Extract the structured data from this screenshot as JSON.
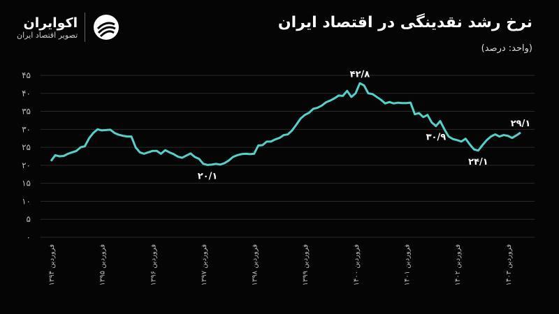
{
  "logo": {
    "name": "اکوایران",
    "tagline": "تصویر اقتصاد ایران"
  },
  "chart_data": {
    "type": "line",
    "title": "نرخ رشد نقدینگی در اقتصاد ایران",
    "subtitle": "(واحد: درصد)",
    "color": "#4fd3cb",
    "grid": true,
    "ylim": [
      0,
      45
    ],
    "yticks": [
      {
        "value": 0,
        "label": "۰"
      },
      {
        "value": 5,
        "label": "۵"
      },
      {
        "value": 10,
        "label": "۱۰"
      },
      {
        "value": 15,
        "label": "۱۵"
      },
      {
        "value": 20,
        "label": "۲۰"
      },
      {
        "value": 25,
        "label": "۲۵"
      },
      {
        "value": 30,
        "label": "۳۰"
      },
      {
        "value": 35,
        "label": "۳۵"
      },
      {
        "value": 40,
        "label": "۴۰"
      },
      {
        "value": 45,
        "label": "۴۵"
      }
    ],
    "categories": [
      "فروردین ۱۳۹۴",
      null,
      null,
      null,
      null,
      null,
      null,
      null,
      null,
      null,
      null,
      null,
      "فروردین ۱۳۹۵",
      null,
      null,
      null,
      null,
      null,
      null,
      null,
      null,
      null,
      null,
      null,
      "فروردین ۱۳۹۶",
      null,
      null,
      null,
      null,
      null,
      null,
      null,
      null,
      null,
      null,
      null,
      "فروردین ۱۳۹۷",
      null,
      null,
      null,
      null,
      null,
      null,
      null,
      null,
      null,
      null,
      null,
      "فروردین ۱۳۹۸",
      null,
      null,
      null,
      null,
      null,
      null,
      null,
      null,
      null,
      null,
      null,
      "فروردین ۱۳۹۹",
      null,
      null,
      null,
      null,
      null,
      null,
      null,
      null,
      null,
      null,
      null,
      "فروردین ۱۴۰۰",
      null,
      null,
      null,
      null,
      null,
      null,
      null,
      null,
      null,
      null,
      null,
      "فروردین ۱۴۰۱",
      null,
      null,
      null,
      null,
      null,
      null,
      null,
      null,
      null,
      null,
      null,
      "فروردین ۱۴۰۲",
      null,
      null,
      null,
      null,
      null,
      null,
      null,
      null,
      null,
      null,
      null,
      "فروردین ۱۴۰۳",
      null,
      null,
      null
    ],
    "values": [
      21.2,
      22.8,
      22.5,
      22.6,
      23.2,
      23.6,
      24.0,
      25.0,
      25.3,
      27.5,
      29.0,
      30.0,
      29.7,
      29.8,
      29.9,
      29.0,
      28.5,
      28.2,
      28.0,
      28.0,
      25.0,
      23.6,
      23.2,
      23.6,
      24.0,
      24.0,
      23.2,
      24.2,
      23.6,
      23.1,
      22.4,
      22.1,
      22.7,
      23.3,
      22.3,
      21.8,
      20.4,
      20.1,
      20.2,
      20.4,
      20.2,
      20.6,
      21.3,
      22.3,
      22.8,
      23.1,
      23.2,
      23.1,
      23.2,
      25.5,
      25.6,
      26.6,
      26.6,
      27.2,
      27.6,
      28.4,
      28.6,
      29.7,
      31.3,
      33.0,
      34.0,
      34.6,
      35.7,
      36.0,
      36.6,
      37.5,
      38.0,
      38.6,
      39.4,
      39.3,
      40.7,
      39.0,
      40.0,
      42.8,
      42.2,
      40.0,
      39.8,
      39.0,
      38.2,
      37.2,
      37.6,
      37.2,
      37.4,
      37.3,
      37.3,
      37.4,
      34.2,
      34.5,
      33.4,
      34.0,
      31.9,
      30.9,
      32.3,
      30.0,
      28.0,
      27.3,
      27.0,
      26.6,
      27.4,
      25.8,
      24.4,
      24.1,
      25.6,
      27.0,
      28.0,
      28.6,
      28.0,
      28.4,
      28.2,
      27.6,
      28.3,
      29.1
    ],
    "value_labels": [
      null,
      null,
      null,
      null,
      null,
      null,
      null,
      null,
      null,
      null,
      null,
      null,
      null,
      null,
      null,
      null,
      null,
      null,
      null,
      null,
      null,
      null,
      null,
      null,
      null,
      null,
      null,
      null,
      null,
      null,
      null,
      null,
      null,
      null,
      null,
      null,
      null,
      "۲۰/۱",
      null,
      null,
      null,
      null,
      null,
      null,
      null,
      null,
      null,
      null,
      null,
      null,
      null,
      null,
      null,
      null,
      null,
      null,
      null,
      null,
      null,
      null,
      null,
      null,
      null,
      null,
      null,
      null,
      null,
      null,
      null,
      null,
      null,
      null,
      null,
      "۴۲/۸",
      null,
      null,
      null,
      null,
      null,
      null,
      null,
      null,
      null,
      null,
      null,
      null,
      null,
      null,
      null,
      null,
      null,
      "۳۰/۹",
      null,
      null,
      null,
      null,
      null,
      null,
      null,
      null,
      null,
      "۲۴/۱",
      null,
      null,
      null,
      null,
      null,
      null,
      null,
      null,
      null,
      "۲۹/۱"
    ]
  }
}
